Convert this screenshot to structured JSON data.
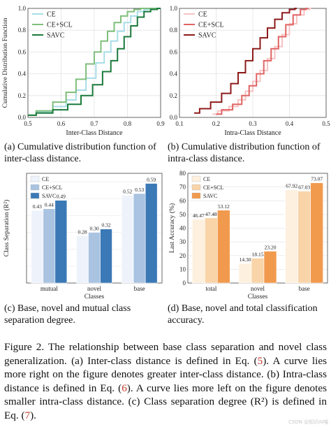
{
  "chart_data": [
    {
      "id": "a",
      "type": "line",
      "xlabel": "Inter-Class Distance",
      "ylabel": "Cumulative Distribution Function",
      "xlim": [
        0.5,
        0.9
      ],
      "ylim": [
        0.0,
        1.0
      ],
      "xticks": [
        "0.5",
        "0.6",
        "0.7",
        "0.8",
        "0.9"
      ],
      "yticks": [
        "0.0",
        "0.2",
        "0.4",
        "0.6",
        "0.8",
        "1.0"
      ],
      "grid": true,
      "legend": "top-left",
      "series": [
        {
          "name": "CE",
          "color": "#a8dde8",
          "x": [
            0.5,
            0.55,
            0.6,
            0.63,
            0.66,
            0.69,
            0.72,
            0.74,
            0.76,
            0.78,
            0.8,
            0.82,
            0.84,
            0.86,
            0.88,
            0.9
          ],
          "y": [
            0.02,
            0.05,
            0.1,
            0.16,
            0.25,
            0.36,
            0.5,
            0.6,
            0.7,
            0.79,
            0.87,
            0.93,
            0.97,
            0.99,
            1.0,
            1.0
          ]
        },
        {
          "name": "CE+SCL",
          "color": "#7fbf7b",
          "x": [
            0.5,
            0.55,
            0.6,
            0.63,
            0.66,
            0.69,
            0.71,
            0.73,
            0.75,
            0.77,
            0.79,
            0.81,
            0.83,
            0.85,
            0.87,
            0.9
          ],
          "y": [
            0.02,
            0.06,
            0.14,
            0.23,
            0.35,
            0.49,
            0.6,
            0.7,
            0.79,
            0.87,
            0.93,
            0.97,
            0.99,
            1.0,
            1.0,
            1.0
          ]
        },
        {
          "name": "SAVC",
          "color": "#1b7a3c",
          "x": [
            0.5,
            0.55,
            0.6,
            0.64,
            0.68,
            0.71,
            0.74,
            0.76,
            0.78,
            0.8,
            0.82,
            0.84,
            0.86,
            0.88,
            0.9
          ],
          "y": [
            0.02,
            0.04,
            0.07,
            0.12,
            0.2,
            0.3,
            0.42,
            0.52,
            0.63,
            0.74,
            0.84,
            0.92,
            0.97,
            0.99,
            1.0
          ]
        }
      ]
    },
    {
      "id": "b",
      "type": "line",
      "xlabel": "Intra-Class Distance",
      "ylabel": "",
      "xlim": [
        0.1,
        0.5
      ],
      "ylim": [
        0.0,
        1.0
      ],
      "xticks": [
        "0.1",
        "0.2",
        "0.3",
        "0.4",
        "0.5"
      ],
      "yticks": [
        "0.0",
        "0.2",
        "0.4",
        "0.6",
        "0.8",
        "1.0"
      ],
      "grid": true,
      "legend": "top-left",
      "series": [
        {
          "name": "CE",
          "color": "#f7c3c3",
          "x": [
            0.19,
            0.22,
            0.25,
            0.27,
            0.29,
            0.31,
            0.33,
            0.35,
            0.37,
            0.39,
            0.41,
            0.43,
            0.45,
            0.46
          ],
          "y": [
            0.03,
            0.06,
            0.1,
            0.16,
            0.24,
            0.33,
            0.43,
            0.54,
            0.65,
            0.76,
            0.86,
            0.94,
            0.99,
            1.0
          ]
        },
        {
          "name": "CE+SCL",
          "color": "#e06464",
          "x": [
            0.2,
            0.23,
            0.26,
            0.28,
            0.3,
            0.32,
            0.34,
            0.36,
            0.38,
            0.4,
            0.42,
            0.44,
            0.45
          ],
          "y": [
            0.03,
            0.07,
            0.12,
            0.2,
            0.29,
            0.4,
            0.52,
            0.63,
            0.74,
            0.85,
            0.94,
            0.99,
            1.0
          ]
        },
        {
          "name": "SAVC",
          "color": "#8e1b1b",
          "x": [
            0.14,
            0.17,
            0.2,
            0.23,
            0.25,
            0.27,
            0.29,
            0.31,
            0.33,
            0.35,
            0.37,
            0.39,
            0.41,
            0.42
          ],
          "y": [
            0.04,
            0.08,
            0.14,
            0.22,
            0.31,
            0.41,
            0.52,
            0.63,
            0.73,
            0.82,
            0.9,
            0.96,
            0.99,
            1.0
          ]
        }
      ]
    },
    {
      "id": "c",
      "type": "bar",
      "categories": [
        "mutual",
        "novel",
        "base"
      ],
      "xlabel": "Classes",
      "ylabel": "Class Separation (R²)",
      "ylim": [
        0,
        0.65
      ],
      "grid": true,
      "legend": "top-left",
      "series": [
        {
          "name": "CE",
          "color": "#eef3fb",
          "values": [
            0.43,
            0.28,
            0.52
          ],
          "labels": [
            "0.43",
            "0.28",
            "0.52"
          ]
        },
        {
          "name": "CE+SCL",
          "color": "#a9c3e1",
          "values": [
            0.44,
            0.3,
            0.53
          ],
          "labels": [
            "0.44",
            "0.30",
            "0.53"
          ]
        },
        {
          "name": "SAVC",
          "color": "#3b79b6",
          "values": [
            0.49,
            0.32,
            0.59
          ],
          "labels": [
            "0.49",
            "0.32",
            "0.59"
          ]
        }
      ]
    },
    {
      "id": "d",
      "type": "bar",
      "categories": [
        "total",
        "novel",
        "base"
      ],
      "xlabel": "Classes",
      "ylabel": "Last Accuracy (%)",
      "ylim": [
        0,
        80
      ],
      "yticks": [
        "0",
        "10",
        "20",
        "30",
        "40",
        "50",
        "60",
        "70",
        "80"
      ],
      "grid": true,
      "legend": "top-left",
      "series": [
        {
          "name": "CE",
          "color": "#fdf0de",
          "values": [
            46.47,
            14.3,
            67.92
          ],
          "labels": [
            "46.47",
            "14.30",
            "67.92"
          ]
        },
        {
          "name": "CE+SCL",
          "color": "#f9d4a8",
          "values": [
            47.48,
            18.15,
            67.03
          ],
          "labels": [
            "47.48",
            "18.15",
            "67.03"
          ]
        },
        {
          "name": "SAVC",
          "color": "#f19a4e",
          "values": [
            53.12,
            23.2,
            73.07
          ],
          "labels": [
            "53.12",
            "23.20",
            "73.07"
          ]
        }
      ]
    }
  ],
  "subcaptions": {
    "a": "(a) Cumulative distribution function of inter-class distance.",
    "b": "(b) Cumulative distribution function of intra-class distance.",
    "c": "(c) Base, novel and mutual class separation degree.",
    "d": "(d) Base, novel and total classification accuracy."
  },
  "caption": {
    "p1": "Figure 2. The relationship between base class separation and novel class generalization. (a) Inter-class distance is defined in Eq. (",
    "r1": "5",
    "p2": "). A curve lies more right on the figure denotes greater inter-class distance. (b) Intra-class distance is defined in Eq. (",
    "r2": "6",
    "p3": "). A curve lies more left on the figure denotes smaller intra-class distance. (c) Class separation degree (R²) is defined in Eq. (",
    "r3": "7",
    "p4": ")."
  },
  "watermark": "CSDN @知识AI喵"
}
